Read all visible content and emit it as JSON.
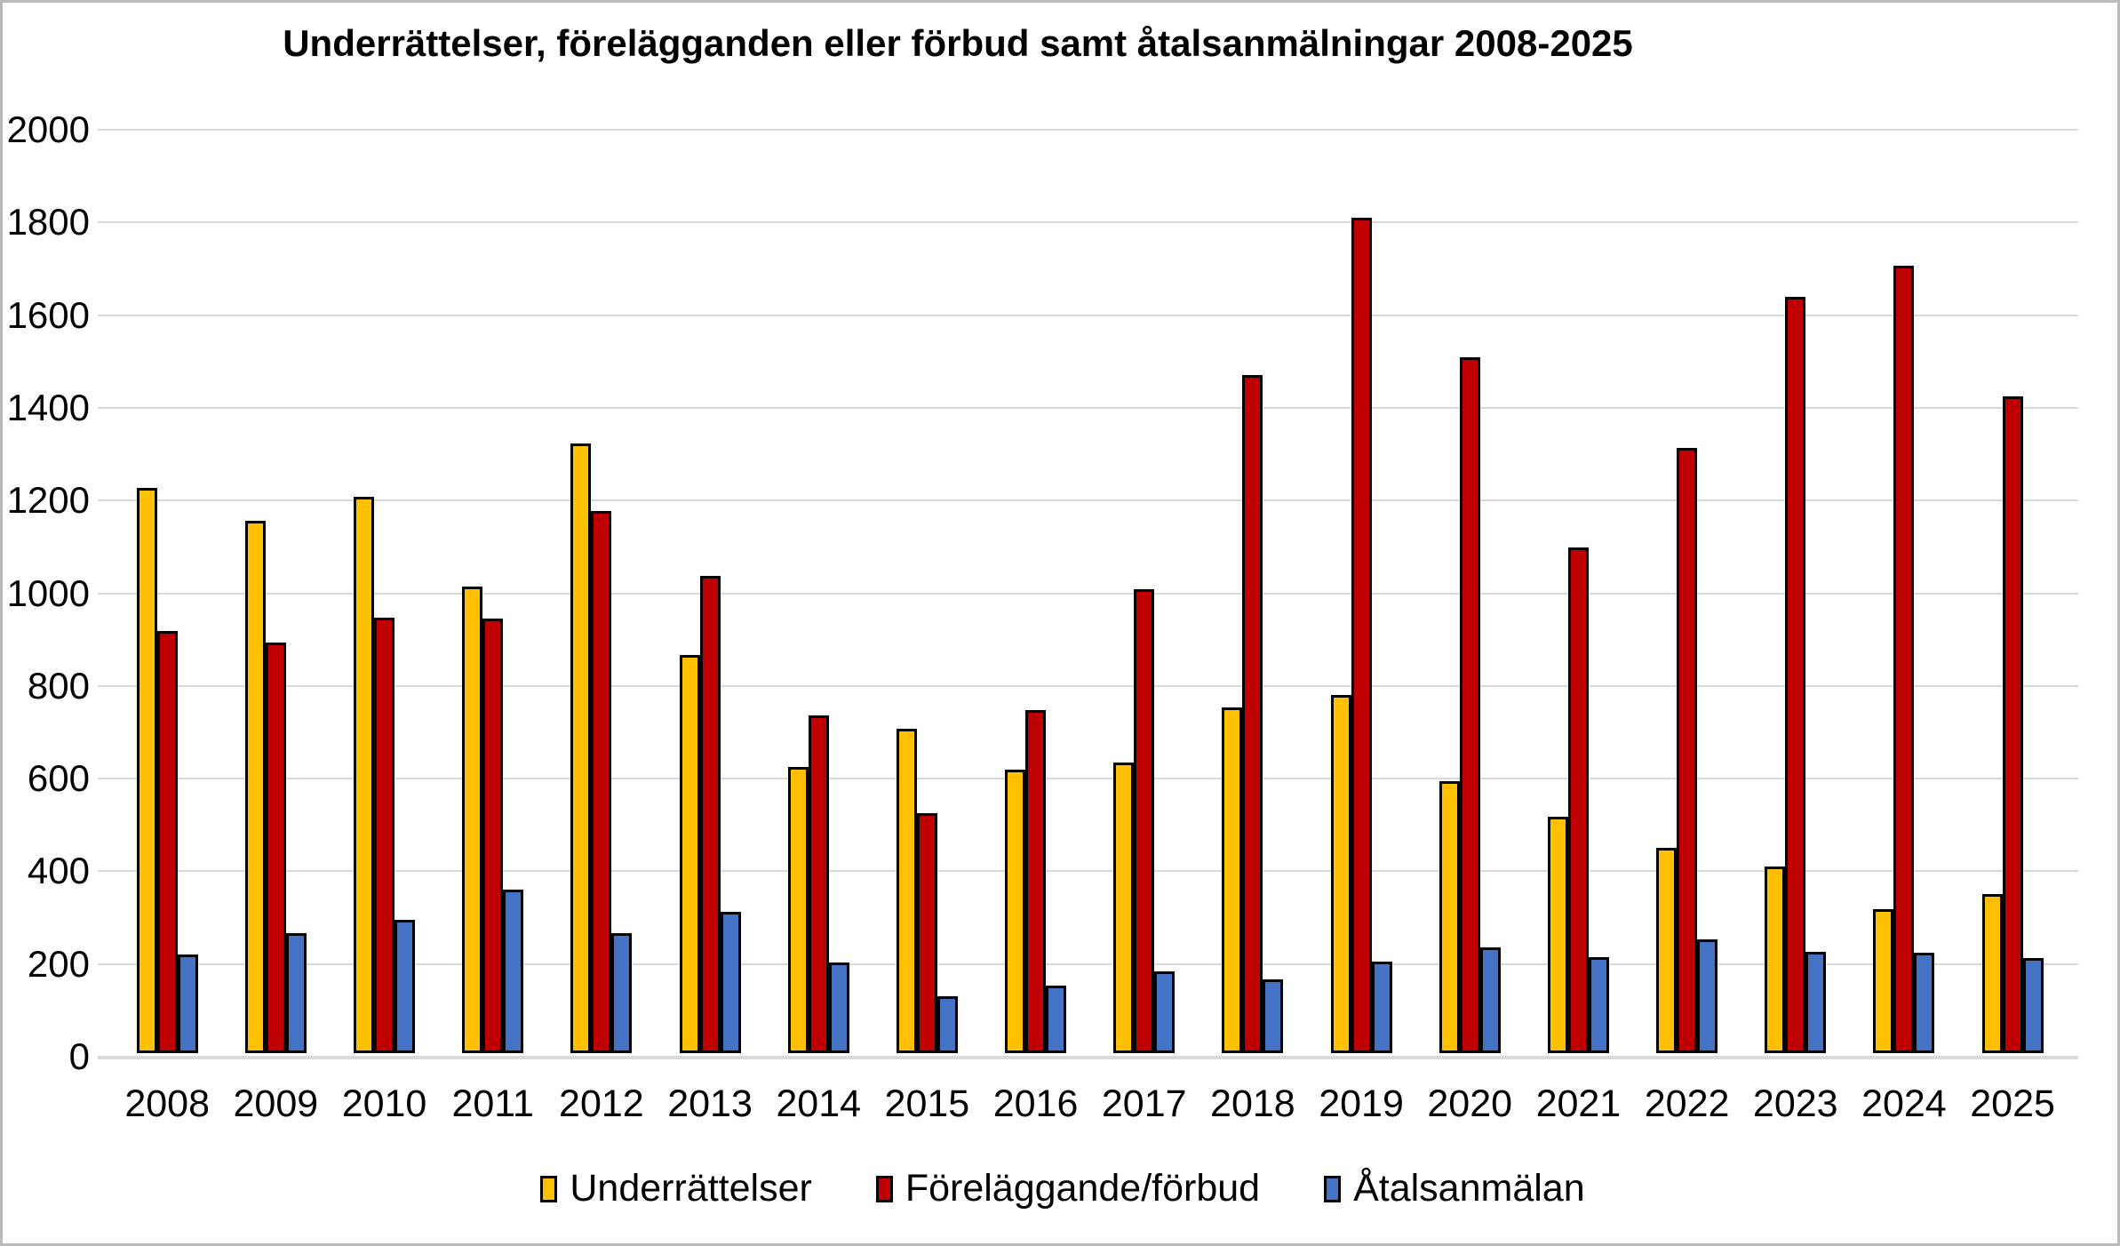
{
  "title": "Underrättelser, förelägganden eller förbud samt åtalsanmälningar 2008-2025",
  "y_axis": {
    "tick_labels": [
      "0",
      "200",
      "400",
      "600",
      "800",
      "1000",
      "1200",
      "1400",
      "1600",
      "1800",
      "2000"
    ]
  },
  "chart_data": {
    "type": "bar",
    "title": "Underrättelser, förelägganden eller förbud samt åtalsanmälningar 2008-2025",
    "categories": [
      "2008",
      "2009",
      "2010",
      "2011",
      "2012",
      "2013",
      "2014",
      "2015",
      "2016",
      "2017",
      "2018",
      "2019",
      "2020",
      "2021",
      "2022",
      "2023",
      "2024",
      "2025"
    ],
    "series": [
      {
        "name": "Underrättelser",
        "color": "#FFC000",
        "values": [
          1220,
          1148,
          1200,
          1007,
          1315,
          860,
          617,
          700,
          611,
          627,
          746,
          772,
          586,
          511,
          443,
          403,
          310,
          343
        ]
      },
      {
        "name": "Föreläggande/förbud",
        "color": "#C00000",
        "values": [
          910,
          886,
          940,
          938,
          1169,
          1029,
          728,
          518,
          740,
          1001,
          1464,
          1802,
          1501,
          1092,
          1306,
          1632,
          1698,
          1418
        ]
      },
      {
        "name": "Åtalsanmälan",
        "color": "#4472C4",
        "values": [
          212,
          258,
          288,
          352,
          258,
          304,
          196,
          123,
          146,
          176,
          160,
          198,
          229,
          207,
          245,
          219,
          216,
          206
        ]
      }
    ],
    "xlabel": "",
    "ylabel": "",
    "ylim": [
      0,
      2000
    ],
    "ytick_interval": 200,
    "grid": true,
    "legend_position": "bottom",
    "bar_outline_color": "#000000",
    "gridline_color": "#d9d9d9"
  }
}
